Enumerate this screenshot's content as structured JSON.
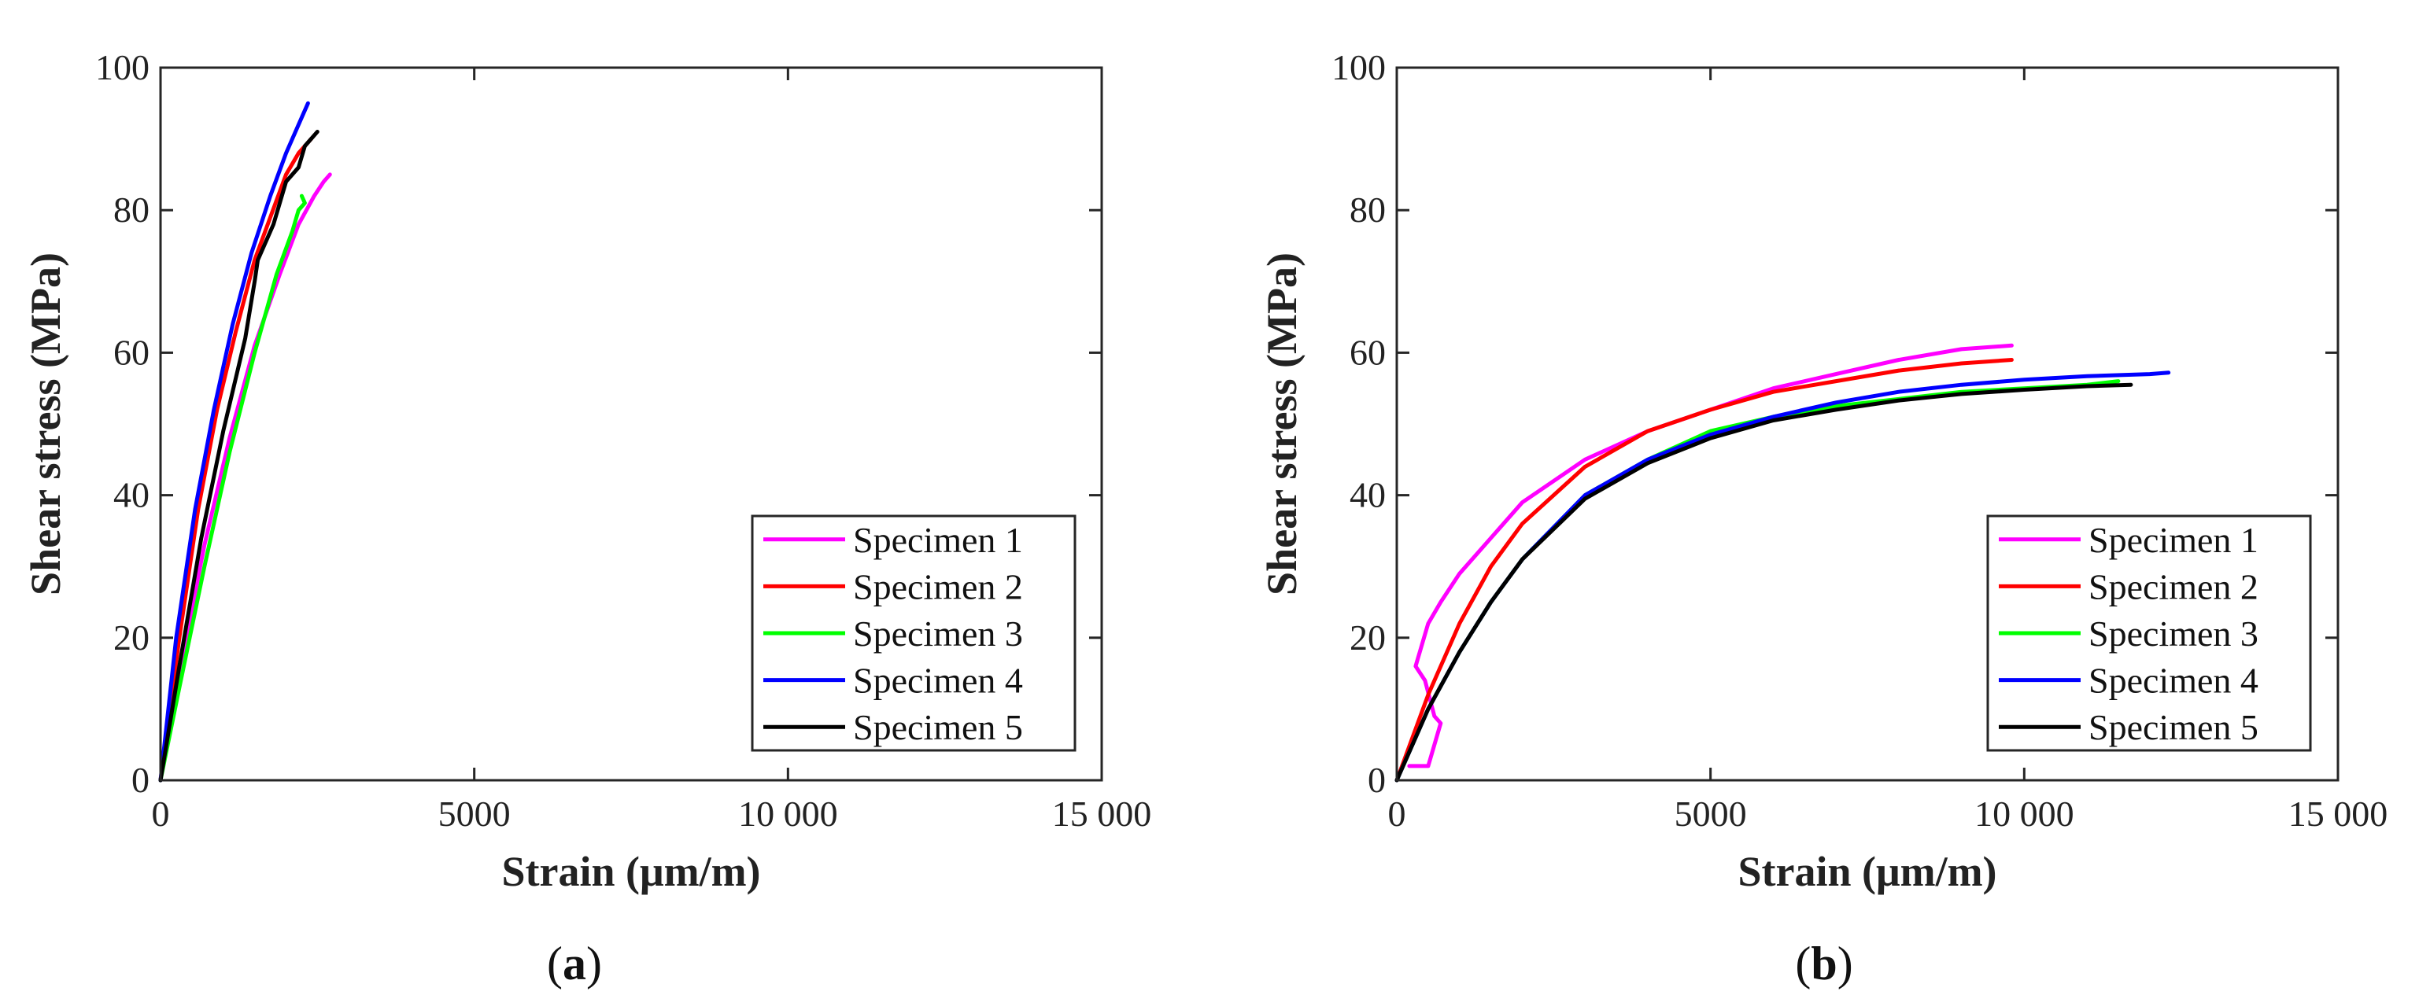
{
  "chart_data": [
    {
      "type": "line",
      "panel": "a",
      "xlabel": "Strain (μm/m)",
      "ylabel": "Shear stress (MPa)",
      "xlim": [
        0,
        15000
      ],
      "ylim": [
        0,
        100
      ],
      "xticks": [
        0,
        5000,
        10000,
        15000
      ],
      "xtick_labels": [
        "0",
        "5000",
        "10 000",
        "15 000"
      ],
      "yticks": [
        0,
        20,
        40,
        60,
        80,
        100
      ],
      "ytick_labels": [
        "0",
        "20",
        "40",
        "60",
        "80",
        "100"
      ],
      "grid": false,
      "legend_position": "bottom-right",
      "series": [
        {
          "name": "Specimen 1",
          "color": "#ff00ff",
          "x": [
            0,
            300,
            700,
            1100,
            1500,
            1900,
            2200,
            2450,
            2600,
            2700
          ],
          "y": [
            0,
            15,
            33,
            48,
            61,
            71,
            78,
            82,
            84,
            85
          ]
        },
        {
          "name": "Specimen 2",
          "color": "#ff0000",
          "x": [
            0,
            300,
            600,
            900,
            1200,
            1500,
            1750,
            2000,
            2200,
            2400
          ],
          "y": [
            0,
            20,
            38,
            52,
            63,
            73,
            79,
            85,
            88,
            90
          ]
        },
        {
          "name": "Specimen 3",
          "color": "#00ff00",
          "x": [
            0,
            300,
            700,
            1100,
            1500,
            1850,
            2100,
            2200,
            2300,
            2250
          ],
          "y": [
            0,
            13,
            30,
            46,
            60,
            71,
            77,
            80,
            81,
            82
          ]
        },
        {
          "name": "Specimen 4",
          "color": "#0000ff",
          "x": [
            0,
            250,
            550,
            850,
            1150,
            1450,
            1750,
            2000,
            2200,
            2350
          ],
          "y": [
            0,
            20,
            38,
            52,
            64,
            74,
            82,
            88,
            92,
            95
          ]
        },
        {
          "name": "Specimen 5",
          "color": "#000000",
          "x": [
            0,
            300,
            650,
            1000,
            1350,
            1500,
            1550,
            1800,
            2000,
            2200,
            2300,
            2500
          ],
          "y": [
            0,
            16,
            34,
            49,
            62,
            70,
            73,
            78,
            84,
            86,
            89,
            91
          ]
        }
      ],
      "panel_label": "a"
    },
    {
      "type": "line",
      "panel": "b",
      "xlabel": "Strain (μm/m)",
      "ylabel": "Shear stress (MPa)",
      "xlim": [
        0,
        15000
      ],
      "ylim": [
        0,
        100
      ],
      "xticks": [
        0,
        5000,
        10000,
        15000
      ],
      "xtick_labels": [
        "0",
        "5000",
        "10 000",
        "15 000"
      ],
      "yticks": [
        0,
        20,
        40,
        60,
        80,
        100
      ],
      "ytick_labels": [
        "0",
        "20",
        "40",
        "60",
        "80",
        "100"
      ],
      "grid": false,
      "legend_position": "bottom-right",
      "series": [
        {
          "name": "Specimen 1",
          "color": "#ff00ff",
          "x": [
            200,
            500,
            700,
            600,
            450,
            300,
            500,
            700,
            1000,
            1500,
            2000,
            3000,
            4000,
            5000,
            6000,
            7000,
            8000,
            9000,
            9800
          ],
          "y": [
            2,
            2,
            8,
            9,
            14,
            16,
            22,
            25,
            29,
            34,
            39,
            45,
            49,
            52,
            55,
            57,
            59,
            60.5,
            61
          ]
        },
        {
          "name": "Specimen 2",
          "color": "#ff0000",
          "x": [
            0,
            500,
            1000,
            1500,
            2000,
            3000,
            4000,
            5000,
            6000,
            7000,
            8000,
            9000,
            9800
          ],
          "y": [
            0,
            12,
            22,
            30,
            36,
            44,
            49,
            52,
            54.5,
            56,
            57.5,
            58.5,
            59
          ]
        },
        {
          "name": "Specimen 3",
          "color": "#00ff00",
          "x": [
            0,
            500,
            1000,
            1500,
            2000,
            3000,
            4000,
            5000,
            6000,
            7000,
            8000,
            9000,
            10000,
            11000,
            11500
          ],
          "y": [
            0,
            10,
            18,
            25,
            31,
            40,
            45,
            49,
            51,
            52.5,
            53.5,
            54.5,
            55,
            55.5,
            56
          ]
        },
        {
          "name": "Specimen 4",
          "color": "#0000ff",
          "x": [
            0,
            500,
            1000,
            1500,
            2000,
            3000,
            4000,
            5000,
            6000,
            7000,
            8000,
            9000,
            10000,
            11000,
            12000,
            12300
          ],
          "y": [
            0,
            10,
            18,
            25,
            31,
            40,
            45,
            48.5,
            51,
            53,
            54.5,
            55.5,
            56.2,
            56.7,
            57,
            57.2
          ]
        },
        {
          "name": "Specimen 5",
          "color": "#000000",
          "x": [
            0,
            500,
            1000,
            1500,
            2000,
            3000,
            4000,
            5000,
            6000,
            7000,
            8000,
            9000,
            10000,
            11000,
            11700
          ],
          "y": [
            0,
            10,
            18,
            25,
            31,
            39.5,
            44.5,
            48,
            50.5,
            52,
            53.3,
            54.2,
            54.8,
            55.3,
            55.5
          ]
        }
      ],
      "panel_label": "b"
    }
  ]
}
